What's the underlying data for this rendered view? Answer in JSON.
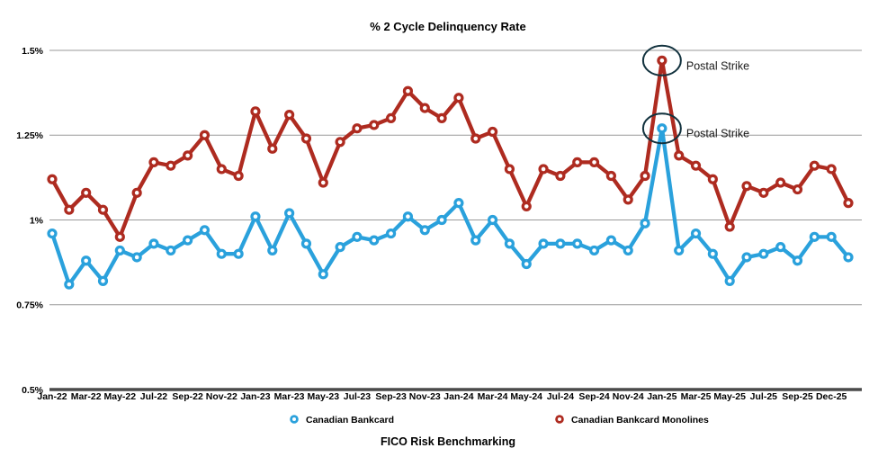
{
  "chart": {
    "title": "% 2 Cycle Delinquency Rate",
    "footer": "FICO Risk Benchmarking",
    "annotations": [
      {
        "label": "Postal Strike",
        "series": "Canadian Bankcard Monolines",
        "x": "Jan-25",
        "value": 1.47
      },
      {
        "label": "Postal Strike",
        "series": "Canadian Bankcard",
        "x": "Jan-25",
        "value": 1.27
      }
    ]
  },
  "colors": {
    "bankcard_blue": "#2AA1DC",
    "monolines_red": "#AE2B20",
    "gridline": "#9a9a9a",
    "axis": "#4a4a4a",
    "annotation_ellipse": "#12323e",
    "marker_center": "#ffffff"
  },
  "chart_data": {
    "type": "line",
    "title": "% 2 Cycle Delinquency Rate",
    "footer": "FICO Risk Benchmarking",
    "x": [
      "Jan-22",
      "Feb-22",
      "Mar-22",
      "Apr-22",
      "May-22",
      "Jun-22",
      "Jul-22",
      "Aug-22",
      "Sep-22",
      "Oct-22",
      "Nov-22",
      "Dec-22",
      "Jan-23",
      "Feb-23",
      "Mar-23",
      "Apr-23",
      "May-23",
      "Jun-23",
      "Jul-23",
      "Aug-23",
      "Sep-23",
      "Oct-23",
      "Nov-23",
      "Dec-23",
      "Jan-24",
      "Feb-24",
      "Mar-24",
      "Apr-24",
      "May-24",
      "Jun-24",
      "Jul-24",
      "Aug-24",
      "Sep-24",
      "Oct-24",
      "Nov-24",
      "Dec-24",
      "Jan-25",
      "Feb-25",
      "Mar-25",
      "Apr-25",
      "May-25",
      "Jun-25",
      "Jul-25",
      "Aug-25",
      "Sep-25",
      "Oct-25",
      "Nov-25",
      "Dec-25"
    ],
    "xtick_labels": [
      "Jan-22",
      "Mar-22",
      "May-22",
      "Jul-22",
      "Sep-22",
      "Nov-22",
      "Jan-23",
      "Mar-23",
      "May-23",
      "Jul-23",
      "Sep-23",
      "Nov-23",
      "Jan-24",
      "Mar-24",
      "May-24",
      "Jul-24",
      "Sep-24",
      "Nov-24",
      "Jan-25",
      "Mar-25",
      "May-25",
      "Jul-25",
      "Sep-25",
      "Dec-25"
    ],
    "series": [
      {
        "name": "Canadian Bankcard Monolines",
        "color": "#AE2B20",
        "values": [
          1.12,
          1.03,
          1.08,
          1.03,
          0.95,
          1.08,
          1.17,
          1.16,
          1.19,
          1.25,
          1.15,
          1.13,
          1.32,
          1.21,
          1.31,
          1.24,
          1.11,
          1.23,
          1.27,
          1.28,
          1.3,
          1.38,
          1.33,
          1.3,
          1.36,
          1.24,
          1.26,
          1.15,
          1.04,
          1.15,
          1.13,
          1.17,
          1.17,
          1.13,
          1.06,
          1.13,
          1.47,
          1.19,
          1.16,
          1.12,
          0.98,
          1.1,
          1.08,
          1.11,
          1.09,
          1.16,
          1.15,
          1.05
        ]
      },
      {
        "name": "Canadian Bankcard",
        "color": "#2AA1DC",
        "values": [
          0.96,
          0.81,
          0.88,
          0.82,
          0.91,
          0.89,
          0.93,
          0.91,
          0.94,
          0.97,
          0.9,
          0.9,
          1.01,
          0.91,
          1.02,
          0.93,
          0.84,
          0.92,
          0.95,
          0.94,
          0.96,
          1.01,
          0.97,
          1.0,
          1.05,
          0.94,
          1.0,
          0.93,
          0.87,
          0.93,
          0.93,
          0.93,
          0.91,
          0.94,
          0.91,
          0.99,
          1.27,
          0.91,
          0.96,
          0.9,
          0.82,
          0.89,
          0.9,
          0.92,
          0.88,
          0.95,
          0.95,
          0.89
        ]
      }
    ],
    "yticks": [
      0.5,
      0.75,
      1.0,
      1.25,
      1.5
    ],
    "ytick_labels": [
      "0.5%",
      "0.75%",
      "1%",
      "1.25%",
      "1.5%"
    ],
    "ylim": [
      0.5,
      1.5
    ],
    "grid": "horizontal",
    "legend_position": "bottom",
    "legend_order": [
      "Canadian Bankcard",
      "Canadian Bankcard Monolines"
    ]
  }
}
